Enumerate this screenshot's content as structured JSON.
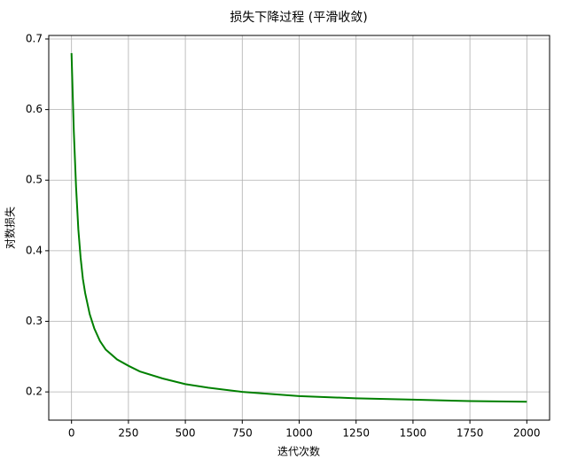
{
  "chart_data": {
    "type": "line",
    "title": "损失下降过程 (平滑收敛)",
    "x_label": "迭代次数",
    "y_label": "对数损失",
    "x": [
      0,
      10,
      20,
      30,
      40,
      50,
      60,
      80,
      100,
      125,
      150,
      200,
      250,
      300,
      400,
      500,
      600,
      750,
      1000,
      1250,
      1500,
      1750,
      2000
    ],
    "series": [
      {
        "color": "#008000",
        "values": [
          0.68,
          0.57,
          0.49,
          0.43,
          0.39,
          0.36,
          0.34,
          0.31,
          0.29,
          0.272,
          0.26,
          0.246,
          0.237,
          0.229,
          0.219,
          0.211,
          0.206,
          0.2,
          0.194,
          0.191,
          0.189,
          0.187,
          0.186
        ]
      }
    ],
    "xlim": [
      -100,
      2100
    ],
    "xticks": [
      0,
      250,
      500,
      750,
      1000,
      1250,
      1500,
      1750,
      2000
    ],
    "ylim": [
      0.16,
      0.705
    ],
    "yticks": [
      0.2,
      0.3,
      0.4,
      0.5,
      0.6,
      0.7
    ],
    "grid": true
  }
}
